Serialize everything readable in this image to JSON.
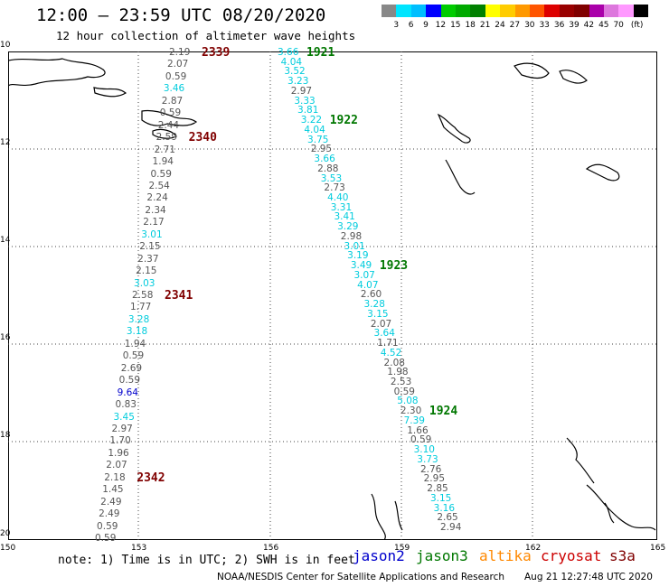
{
  "title": "12:00 – 23:59 UTC 08/20/2020",
  "subtitle": "12 hour collection of altimeter wave heights",
  "colorbar": {
    "colors": [
      "#888888",
      "#00e5ff",
      "#00bfff",
      "#0000ff",
      "#00cc00",
      "#00aa00",
      "#008000",
      "#ffff00",
      "#ffcc00",
      "#ff9900",
      "#ff5500",
      "#dd0000",
      "#990000",
      "#800000",
      "#aa00aa",
      "#dd77dd",
      "#ff99ff",
      "#000000"
    ],
    "labels": [
      "3",
      "6",
      "9",
      "12",
      "15",
      "18",
      "21",
      "24",
      "27",
      "30",
      "33",
      "36",
      "39",
      "42",
      "45",
      "70",
      "(ft)"
    ]
  },
  "axes": {
    "y": [
      "10",
      "12",
      "14",
      "16",
      "18",
      "20"
    ],
    "x": [
      "150",
      "153",
      "156",
      "159",
      "162",
      "165"
    ]
  },
  "colors": {
    "gray": "#555555",
    "cyan": "#00ccdd",
    "blue": "#0000cc",
    "green": "#007700",
    "darkred": "#800000",
    "orange": "#ff8800",
    "red": "#cc0000"
  },
  "left_track": {
    "time_labels": [
      "2339",
      "2340",
      "2341",
      "2342"
    ],
    "values": [
      "2.19",
      "2.07",
      "0.59",
      "3.46",
      "2.87",
      "0.59",
      "2.44",
      "2.59",
      "2.71",
      "1.94",
      "0.59",
      "2.54",
      "2.24",
      "2.34",
      "2.17",
      "3.01",
      "2.15",
      "2.37",
      "2.15",
      "3.03",
      "2.58",
      "1.77",
      "3.28",
      "3.18",
      "1.94",
      "0.59",
      "2.69",
      "0.59",
      "9.64",
      "0.83",
      "3.45",
      "2.97",
      "1.70",
      "1.96",
      "2.07",
      "2.18",
      "1.45",
      "2.49",
      "2.49",
      "0.59",
      "0.59"
    ]
  },
  "right_track": {
    "time_labels": [
      "1921",
      "1922",
      "1923",
      "1924"
    ],
    "values": [
      "3.66",
      "4.04",
      "3.52",
      "3.23",
      "2.97",
      "3.33",
      "3.81",
      "3.22",
      "4.04",
      "3.75",
      "2.95",
      "3.66",
      "2.88",
      "3.53",
      "2.73",
      "4.40",
      "3.31",
      "3.41",
      "3.29",
      "2.98",
      "3.01",
      "3.19",
      "3.49",
      "3.07",
      "4.07",
      "2.60",
      "3.28",
      "3.15",
      "2.07",
      "3.64",
      "1.71",
      "4.52",
      "2.08",
      "1.98",
      "2.53",
      "0.59",
      "5.08",
      "2.30",
      "7.39",
      "1.66",
      "0.59",
      "3.10",
      "3.73",
      "2.76",
      "2.95",
      "2.85",
      "3.15",
      "3.16",
      "2.65",
      "2.94"
    ]
  },
  "footer": {
    "note": "note:  1) Time is in UTC;  2) SWH is in feet",
    "legend": [
      "jason2",
      "jason3",
      "altika",
      "cryosat",
      "s3a"
    ],
    "credit": "NOAA/NESDIS Center for Satellite Applications and Research",
    "timestamp": "Aug 21 12:27:48 UTC 2020"
  }
}
